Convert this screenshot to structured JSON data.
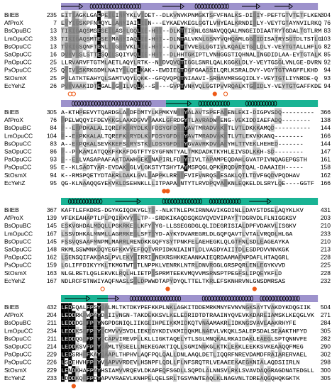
{
  "blocks": [
    {
      "rows": [
        {
          "name": "BilEB",
          "start": "235",
          "seq": "EITIAGKLGAEPEILINMYKLVIDET--DLKVNVKPNMGKTSFVFNALKS-DIDIY-PEFTGTVTETFLKEN",
          "end": "304"
        },
        {
          "name": "AfProX",
          "start": "7",
          "seq": "EVYIGSKPFNEQYLLANMIAILIEN---EYKAEVKEGLGGTLVNYEALKRNDIDLY-VEYTGTAYNVILRKQ",
          "end": "76"
        },
        {
          "name": "BsOpuBC",
          "start": "13",
          "seq": "TIKIGAQSMSESEILASMLGQLIE-HHT--DLKTTIKNLGSNAVQQQALMNGEIDIAATRYTGDALTGTLRM",
          "end": "83"
        },
        {
          "name": "LmOpuCC",
          "start": "33",
          "seq": "TIKIGAQSMTESEIMANMIAQLIE-HHT--DLNTALVKNLGSNYVQHQAMLGGDIDISATRYSGTDLTSTLG",
          "end": "103"
        },
        {
          "name": "BsOpuCC",
          "start": "13",
          "seq": "TVKIGSQNFTENLILGNMVKLLIE-HHT--DLKTTVVEGLGGTIVLKQALETGDLDLY-VEYTGTALLHFLG",
          "end": "82"
        },
        {
          "name": "SaOpuCC",
          "start": "16",
          "seq": "DVKVGSLSTTESQILSQIYVQLIE-HHT--DLHHTGKIPTLVNNGGSTIQHNALINGDIDLAA-EYTGTALK",
          "end": "85"
        },
        {
          "name": "PaOpuCC",
          "start": "25",
          "seq": "LLRVARVFTGTMLAETLAQYLRTK--NTDVQVQTIGGLSNRLQALKGGKLDLY-VEYTGSGLVNLGE-DVRN",
          "end": "92"
        },
        {
          "name": "PsOpuCC",
          "start": "25",
          "seq": "QVIVGSKRKGDMLNAIYMLQELKAK--EWDIEQTDGFGAAGSILQRLKSRALDVY-VGYTGTVAGFFLKHD",
          "end": "94"
        },
        {
          "name": "StOsmX",
          "start": "25",
          "seq": "PVLATKTEAHYQLSAMTVQYLQKK--GFQVQPQTNIAAVI-SRNAVMRGGQIDLY-VEYTGTLIYNRDE-Q",
          "end": "93"
        },
        {
          "name": "EcYehZ",
          "start": "26",
          "seq": "PVKVAAKIDTEGALLGNILVQLK--SH---GVPTVNKVQLGGTPVVRQALKTGDIDLY-VEYTGTGAFFKDE",
          "end": "94"
        }
      ]
    },
    {
      "rows": [
        {
          "name": "BilEB",
          "start": "305",
          "seq": "A-KTHPEEVYTQARDGLAKDFDMTYLKPMKYNNTYALAVTSPEFAKENLEKI-DIGPVSDQ---------",
          "end": "366"
        },
        {
          "name": "AfProX",
          "start": "76",
          "seq": "PPELWQQYIFDEVKKGLAAKDGVVVAAKLGFRDGYTLAVRADWAENG-VEKIDDIAEFADQ--------",
          "end": "138"
        },
        {
          "name": "BsOpuBC",
          "start": "84",
          "seq": "P--EKPDKALALIQREFKKRYDLKVFDSYGFDNTYAVTMRADVAKKTLVTLDKKKAMQD----------",
          "end": "144"
        },
        {
          "name": "LmOpuCC",
          "start": "104",
          "seq": "P--EKPKKALALTQREFKKRYDLKVFDSYGFDNTYAVTMRADVAKKTLVTLEKVKKANQ--------",
          "end": "166"
        },
        {
          "name": "BsOpuCC",
          "start": "83",
          "seq": "A--EKPQKALSEVKKEFSKRYSTKVLDSYGFDNTYGVAVRKDVAAKYHLTTVEKLHEHED-------",
          "end": "144"
        },
        {
          "name": "SaOpuCC",
          "start": "86",
          "seq": "P--PKKAMIATQQKFKKKFDGTFTYSYGFNNTYALTMKDADKTKYHLEIVSDLKKH-SD--------",
          "end": "147"
        },
        {
          "name": "PaOpuCC",
          "start": "93",
          "seq": "P--EKLVASAPAAFAKTDAWHGEKVNAPIRLFDTYTIVLTAPAMPEQDAHLGVATPIVNQAGEPGSTH",
          "end": "161"
        },
        {
          "name": "PsOpuCC",
          "start": "95",
          "seq": "E--KLSADTYAR-EVDAKKGLVLGKSTYTSHYTAYMSPQGLQPKKRQDVRTQAL-DAAAIEH-----",
          "end": "158"
        },
        {
          "name": "StOsmX",
          "start": "94",
          "seq": "K--RMSPQETYDTAKRLDAKLGVLVAPPKLRRNTFVIFVNRQSAESAKLQTLTDVFGQDVPQDHAV",
          "end": "162"
        },
        {
          "name": "EcYehZ",
          "start": "95",
          "seq": "QG-KLNAAQQGYEKVKLDSEHNKLLLITPAPANNTYTLRVDPQVAKKNLEQKELDLSRYLQE----GGTF",
          "end": "166"
        }
      ]
    },
    {
      "rows": [
        {
          "name": "BilEB",
          "start": "367",
          "seq": "KAFTLEFKDRS-DGYKGIQDKYGLTS--NLKTNLEPKIRNNAVIKGDINLLDAYSTDSELAQYKLKV",
          "end": "431"
        },
        {
          "name": "AfProX",
          "start": "139",
          "seq": "VFEKEAHAPTLPLPQIKKVYGLTP--SRDKIKAQDSQKGVQVDVIPAYTTDGRVDLFLNIGGKSV",
          "end": "203"
        },
        {
          "name": "BsOpuBC",
          "start": "145",
          "seq": "ESKVGHDALMDQLLPGKRKEGLKFYSYG-LLSSEGGDGLQLIDEGRISIALDPFVDAKVLISGKV",
          "end": "210"
        },
        {
          "name": "LmOpuCC",
          "start": "167",
          "seq": "LSSVDHKALMNMLLAGRRKEGLSFTSYD-AYKYDVAREGRLDLGQFQAVTLVTALVRQDLHLGA",
          "end": "233"
        },
        {
          "name": "BsOpuCC",
          "start": "145",
          "seq": "FSSVQSAAFMNPMLMARRLRENDKKGQFYSYTPNKFELAEHEGKLQLGTFNLSDLEAGEAYKA",
          "end": "210"
        },
        {
          "name": "SaOpuCC",
          "start": "148",
          "seq": "RKMLSSWMNKDQYEGFKKVYEFDQTVRPIDKNIAINTLDLVASDYAIITDLESDPDVVNVKGK",
          "end": "213"
        },
        {
          "name": "PaOpuCC",
          "start": "162",
          "seq": "LSENSQIFAKDASLPVLEKYGIRRISNEKRSHKKEAANKAIEQRDAAMAFNPDAFLHTAQGRL",
          "end": "228"
        },
        {
          "name": "PsOpuCC",
          "start": "159",
          "seq": "LGLIFFDIKYYKLTKMGTWTGTLNPPKLVENRKLNTRLDNVRGGLGRSPQRLENLEGYKVVD",
          "end": "225"
        },
        {
          "name": "StOsmX",
          "start": "163",
          "seq": "NLGLRETLQGLEKVKLRQLHLIETPSSPRMTEEKVMQVVMSRNSPTPEGFSLIPQEYKFLD",
          "end": "228"
        },
        {
          "name": "EcYehZ",
          "start": "167",
          "seq": "NDLRCFSTNWIYAQFNASLSGLDPWWDTAPYDYQLTTELTKRLEFSKNHRVNLGNSDMRSAS",
          "end": "232"
        }
      ]
    },
    {
      "rows": [
        {
          "name": "BilEB",
          "start": "432",
          "seq": "LEDEQALFPSYQALMLTKTDKYPEFKKPLNKLAGKITDDEMRKMNYEVNVNGKSAYTVAKDYKDQGIIK",
          "end": "504"
        },
        {
          "name": "AfProX",
          "start": "204",
          "seq": "LEDDRKFWPAYDAIIVNGN-TAKDEKKSVLKELEDRIDTDTRAAINYQVEVKKDAREIAMSKLKEQGLVK",
          "end": "271"
        },
        {
          "name": "BsOpuBC",
          "start": "211",
          "seq": "LEDDDGFFPPYNGPDGNIQLIIKGEIHPEIKKMIDKQTVNAAMAKRLIDKNGSVAVEAAKRHYFE",
          "end": "284"
        },
        {
          "name": "LmOpuCC",
          "start": "234",
          "seq": "LEDDKSFFPPYQCMVVVSVDLIEKEGYKDIVKMIDQKMLNAEVLVKQKLSALEPSDALSEAAKTHFYD",
          "end": "305"
        },
        {
          "name": "BsOpuCC",
          "start": "211",
          "seq": "LEDDQGFFPPYQCAPVIREVPLLKLLIGKTAQELYTLSGLMNQKALRKAIDAKLEAEGLSPTQNNVFE",
          "end": "282"
        },
        {
          "name": "SaOpuCC",
          "start": "214",
          "seq": "LEDDKSVFPPYQAMLTVSEELLNEKEGAKTIQLLSGMINNKGLKTKLEKKLEEKKSVKEAAQQFMEG",
          "end": "290"
        },
        {
          "name": "PaOpuCC",
          "start": "229",
          "seq": "LEDSRHFFKAYQAAPLTHPHVLAQFPQLQALLDNLAAQLDETLIQQRFNREVDAMDFRAIARERVAEL",
          "end": "302"
        },
        {
          "name": "PsOpuCC",
          "start": "226",
          "seq": "LSDEHVHFPPYVAAPVVRDEVLHSNPFLQDLLFLNFSRQTRLVEAAEEKAEGKNIALAQDSIIRLN",
          "end": "298"
        },
        {
          "name": "StOsmX",
          "start": "229",
          "seq": "LENDKHAFPAYHSIAMVVRQEVLDKAPEQFSGDLLSQPDLALNNSVLRKLSVAVDAQGRAGDNATEDGLL",
          "end": "300"
        },
        {
          "name": "EcYehZ",
          "start": "233",
          "seq": "LDDDKQFFPDYAPVVRAEVLKNHPELQELSRLTGSVNWTEAQLKLNAGVNLTDREAQGQHQKGKTK",
          "end": "305"
        }
      ]
    }
  ]
}
